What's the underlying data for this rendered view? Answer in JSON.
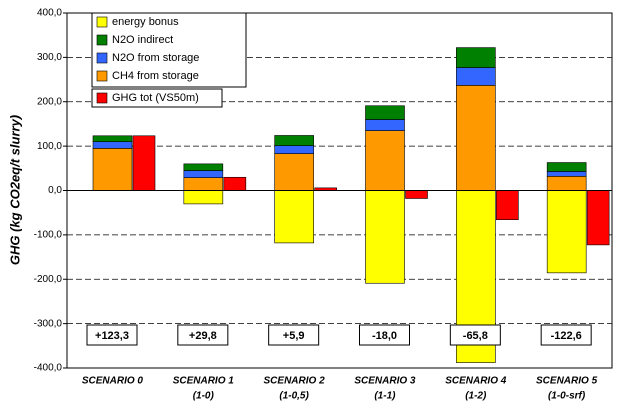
{
  "chart_data": {
    "type": "bar",
    "stacked": true,
    "y_label": "GHG (kg CO2eq/t slurry)",
    "categories": [
      [
        "SCENARIO 0"
      ],
      [
        "SCENARIO 1",
        "(1-0)"
      ],
      [
        "SCENARIO 2",
        "(1-0,5)"
      ],
      [
        "SCENARIO 3",
        "(1-1)"
      ],
      [
        "SCENARIO 4",
        "(1-2)"
      ],
      [
        "SCENARIO 5",
        "(1-0-srf)"
      ]
    ],
    "series": [
      {
        "name": "CH4 from storage",
        "color": "#ff9900",
        "values": [
          95,
          29,
          83,
          135,
          237,
          32
        ]
      },
      {
        "name": "N2O from storage",
        "color": "#3366ff",
        "values": [
          15,
          16,
          18,
          25,
          40,
          11
        ]
      },
      {
        "name": "N2O indirect",
        "color": "#008000",
        "values": [
          13.3,
          15,
          23,
          31,
          45,
          20
        ]
      },
      {
        "name": "energy bonus",
        "color": "#ffff00",
        "values": [
          0,
          -30.2,
          -118.1,
          -209,
          -387.8,
          -185.6
        ]
      }
    ],
    "totals": {
      "name": "GHG tot (VS50m)",
      "color": "#ff0000",
      "values": [
        123.3,
        29.8,
        5.9,
        -18.0,
        -65.8,
        -122.6
      ],
      "value_labels": [
        "+123,3",
        "+29,8",
        "+5,9",
        "-18,0",
        "-65,8",
        "-122,6"
      ]
    },
    "ylim": [
      -400,
      400
    ],
    "yticks": [
      {
        "value": -400,
        "label": "-400,0"
      },
      {
        "value": -300,
        "label": "-300,0"
      },
      {
        "value": -200,
        "label": "-200,0"
      },
      {
        "value": -100,
        "label": "-100,0"
      },
      {
        "value": 0,
        "label": "0,0"
      },
      {
        "value": 100,
        "label": "100,0"
      },
      {
        "value": 200,
        "label": "200,0"
      },
      {
        "value": 300,
        "label": "300,0"
      },
      {
        "value": 400,
        "label": "400,0"
      }
    ],
    "grid": true
  }
}
